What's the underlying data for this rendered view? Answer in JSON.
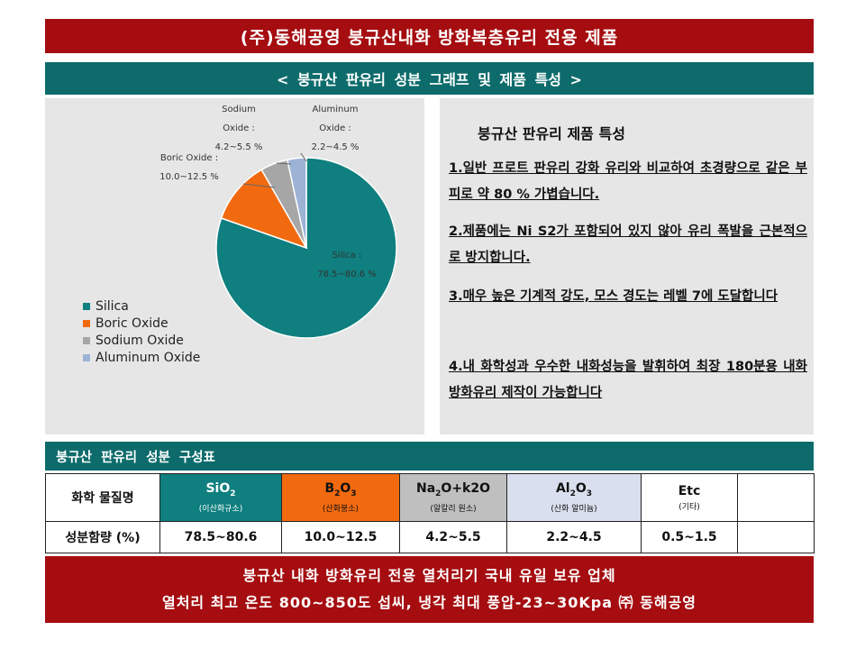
{
  "title": "(주)동해공영 붕규산내화 방화복층유리 전용 제품",
  "subtitle": "< 붕규산 판유리 성분 그래프 및 제품 특성 >",
  "chart_data": {
    "type": "pie",
    "title": "",
    "slices": [
      {
        "name": "Silica",
        "value": 79.55,
        "label_line1": "Silica :",
        "label_line2": "78.5~80.6 %",
        "color": "#0f7f7f"
      },
      {
        "name": "Boric Oxide",
        "value": 11.25,
        "label_line1": "Boric Oxide :",
        "label_line2": "10.0~12.5 %",
        "color": "#f26a0f"
      },
      {
        "name": "Sodium Oxide",
        "value": 4.85,
        "label_line1": "Sodium",
        "label_line2": "Oxide :",
        "label_line3": "4.2~5.5 %",
        "color": "#a6a6a6"
      },
      {
        "name": "Aluminum Oxide",
        "value": 3.35,
        "label_line1": "Aluminum",
        "label_line2": "Oxide :",
        "label_line3": "2.2~4.5 %",
        "color": "#9db3d6"
      }
    ],
    "legend": [
      "Silica",
      "Boric Oxide",
      "Sodium Oxide",
      "Aluminum Oxide"
    ],
    "legend_position": "bottom-left"
  },
  "features": {
    "title": "붕규산 판유리 제품 특성",
    "items": [
      "1.일반 프로트 판유리 강화 유리와 비교하여 초경량으로 같은 부피로 약 80 % 가볍습니다.",
      "2.제품에는 Ni S2가 포함되어 있지 않아 유리 폭발을 근본적으로 방지합니다.",
      "3.매우 높은 기계적 강도, 모스 경도는 레벨 7에 도달합니다",
      "4.내 화학성과 우수한 내화성능을 발휘하여 최장 180분용 내화방화유리 제작이 가능합니다"
    ]
  },
  "table": {
    "header": "붕규산 판유리 성분 구성표",
    "row1_label": "화학 물질명",
    "row2_label": "성분함량 (%)",
    "columns": [
      {
        "formula_parts": [
          "SiO",
          "2",
          ""
        ],
        "korean": "(이산화규소)",
        "value": "78.5~80.6",
        "bg": "#0f7f7f",
        "fg": "#ffffff"
      },
      {
        "formula_parts": [
          "B",
          "2",
          "O",
          "3"
        ],
        "korean": "(산화붕소)",
        "value": "10.0~12.5",
        "bg": "#f26a0f",
        "fg": "#111111"
      },
      {
        "formula_parts": [
          "Na",
          "2",
          "O+k2O"
        ],
        "korean": "(알칼리 원소)",
        "value": "4.2~5.5",
        "bg": "#bfbfbf",
        "fg": "#111111"
      },
      {
        "formula_parts": [
          "Al",
          "2",
          "O",
          "3"
        ],
        "korean": "(산화 알미늄)",
        "value": "2.2~4.5",
        "bg": "#d9dfee",
        "fg": "#111111"
      },
      {
        "formula_parts": [
          "Etc"
        ],
        "korean": "(기타)",
        "value": "0.5~1.5",
        "bg": "#ffffff",
        "fg": "#111111"
      },
      {
        "formula_parts": [
          ""
        ],
        "korean": "",
        "value": "",
        "bg": "#ffffff",
        "fg": "#111111"
      }
    ]
  },
  "footer": {
    "line1": "붕규산 내화 방화유리 전용 열처리기 국내 유일 보유 업체",
    "line2": "열처리 최고 온도 800~850도 섭씨, 냉각 최대 풍압-23~30Kpa ㈜ 동해공영"
  }
}
